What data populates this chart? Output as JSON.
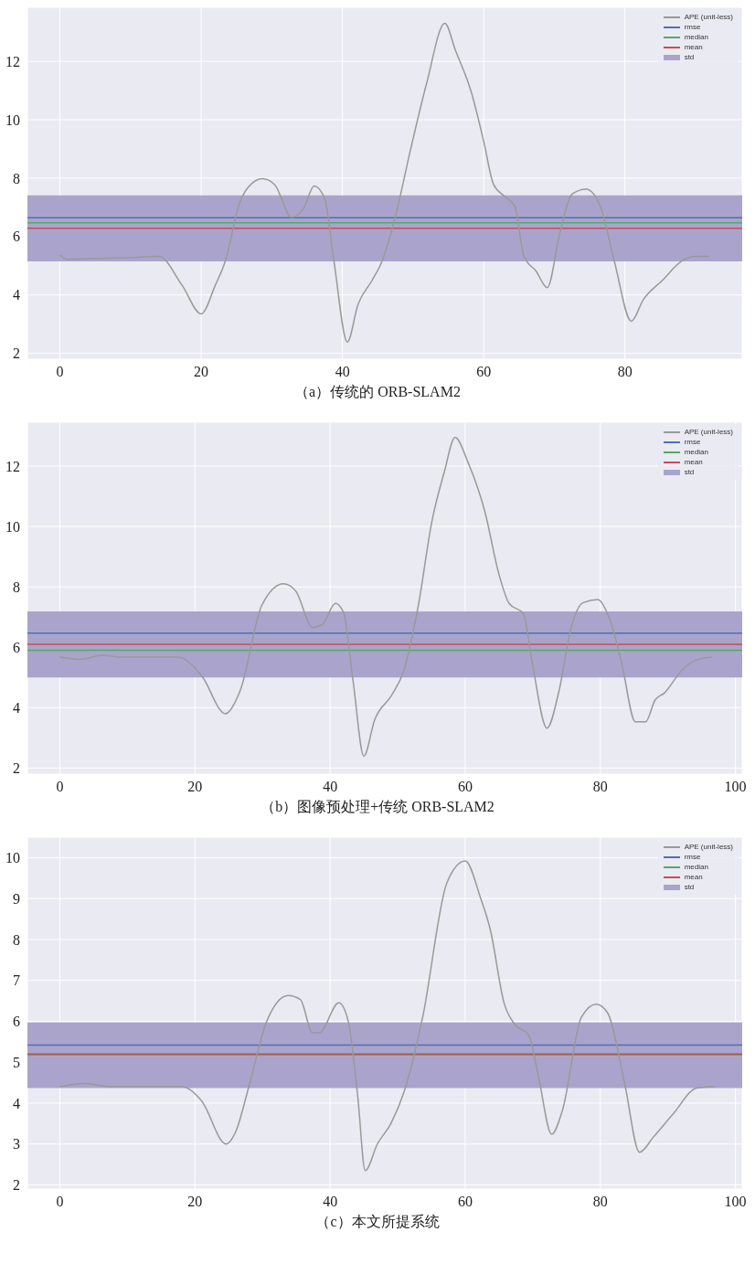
{
  "chart_data": [
    {
      "type": "line",
      "title": "（a）传统的 ORB-SLAM2",
      "x": [
        0,
        1,
        6,
        10,
        14,
        17.3,
        20,
        22,
        23.4,
        25.4,
        26.7,
        28.7,
        30.4,
        32.8,
        34.5,
        36,
        37.5,
        38.8,
        40.7,
        42.2,
        44.2,
        45.6,
        47.6,
        49.6,
        51.9,
        54.5,
        56,
        58.3,
        60,
        61.4,
        63,
        64.4,
        65.7,
        67.4,
        69,
        70.8,
        72.5,
        74.5,
        76.5,
        78.5,
        80.9,
        82.6,
        85.3,
        88,
        90,
        92
      ],
      "series": [
        {
          "name": "APE (unit-less)",
          "color": "#999999",
          "values": [
            5.37,
            5.22,
            5.25,
            5.28,
            5.32,
            4.33,
            3.35,
            4.33,
            5.15,
            7.12,
            7.7,
            7.98,
            7.78,
            6.66,
            6.96,
            7.73,
            7.29,
            5.15,
            2.39,
            3.67,
            4.5,
            5.15,
            6.79,
            8.93,
            11.23,
            13.3,
            12.38,
            10.9,
            9.26,
            7.78,
            7.37,
            7.04,
            5.32,
            4.82,
            4.25,
            6.14,
            7.45,
            7.62,
            7.04,
            5.15,
            3.1,
            3.84,
            4.5,
            5.15,
            5.32,
            5.32
          ]
        }
      ],
      "xlim": [
        -4.6,
        96.6
      ],
      "xticks": [
        0,
        20,
        40,
        60,
        80
      ],
      "ylim": [
        1.8,
        13.85
      ],
      "yticks": [
        2,
        4,
        6,
        8,
        10,
        12
      ],
      "grid": true,
      "legend": "top right",
      "ref_lines": [
        {
          "axis": "y",
          "value": 6.64,
          "label": "rmse",
          "color": "#4c72b0"
        },
        {
          "axis": "y",
          "value": 6.47,
          "label": "median",
          "color": "#55a868"
        },
        {
          "axis": "y",
          "value": 6.28,
          "label": "mean",
          "color": "#c44e52"
        }
      ],
      "bands": [
        {
          "axis": "y",
          "from": 5.15,
          "to": 7.41,
          "label": "std",
          "color": "#aaa4cc"
        }
      ]
    },
    {
      "type": "line",
      "title": "（b）图像预处理+传统 ORB-SLAM2",
      "x": [
        0,
        3,
        6.3,
        9,
        17.5,
        21,
        24.5,
        26.7,
        29.9,
        33.1,
        34.9,
        37.4,
        38.8,
        40.8,
        42,
        43.4,
        45,
        46.6,
        49.1,
        50.9,
        53,
        55.1,
        56.9,
        58.5,
        60.4,
        62.9,
        65,
        66.5,
        68.6,
        70,
        72.1,
        73.9,
        75.7,
        77.4,
        79.6,
        81.3,
        83.1,
        85.2,
        86.7,
        88.1,
        89.5,
        92,
        94.1,
        96.5
      ],
      "series": [
        {
          "name": "APE (unit-less)",
          "color": "#999999",
          "values": [
            5.67,
            5.6,
            5.73,
            5.67,
            5.67,
            5.05,
            3.8,
            4.57,
            7.39,
            8.1,
            7.87,
            6.66,
            6.74,
            7.45,
            7.14,
            4.89,
            2.4,
            3.6,
            4.41,
            5.22,
            7.31,
            10.2,
            11.8,
            12.95,
            12.13,
            10.5,
            8.41,
            7.45,
            7.11,
            5.38,
            3.32,
            4.57,
            6.66,
            7.47,
            7.58,
            6.98,
            5.54,
            3.53,
            3.53,
            4.25,
            4.49,
            5.22,
            5.57,
            5.67
          ]
        }
      ],
      "xlim": [
        -4.8,
        101
      ],
      "xticks": [
        0,
        20,
        40,
        60,
        80,
        100
      ],
      "ylim": [
        1.8,
        13.45
      ],
      "yticks": [
        2,
        4,
        6,
        8,
        10,
        12
      ],
      "grid": true,
      "legend": "top right",
      "ref_lines": [
        {
          "axis": "y",
          "value": 6.47,
          "label": "rmse",
          "color": "#4c72b0"
        },
        {
          "axis": "y",
          "value": 5.9,
          "label": "median",
          "color": "#55a868"
        },
        {
          "axis": "y",
          "value": 6.1,
          "label": "mean",
          "color": "#c44e52"
        }
      ],
      "bands": [
        {
          "axis": "y",
          "from": 5.0,
          "to": 7.19,
          "label": "std",
          "color": "#aaa4cc"
        }
      ]
    },
    {
      "type": "line",
      "title": "（c）本文所提系统",
      "x": [
        0,
        3.6,
        7.5,
        18.1,
        21,
        24.6,
        26,
        28.1,
        30.6,
        33.8,
        35.6,
        37.4,
        38.4,
        41.3,
        42.7,
        44.1,
        45.2,
        47,
        49,
        51,
        53.7,
        57.3,
        60,
        62.3,
        63.7,
        65.8,
        67.3,
        69.4,
        70.8,
        72.8,
        74.4,
        77.2,
        79.4,
        81.1,
        83.6,
        85.8,
        87.9,
        90.7,
        94.3,
        97
      ],
      "series": [
        {
          "name": "APE (unit-less)",
          "color": "#999999",
          "values": [
            4.4,
            4.48,
            4.4,
            4.4,
            4.05,
            3.0,
            3.29,
            4.48,
            5.99,
            6.63,
            6.53,
            5.72,
            5.72,
            6.45,
            5.99,
            4.15,
            2.35,
            3.0,
            3.5,
            4.3,
            6.1,
            9.39,
            9.92,
            9.0,
            8.25,
            6.42,
            5.93,
            5.66,
            4.69,
            3.24,
            3.83,
            6.1,
            6.42,
            6.2,
            4.48,
            2.8,
            3.18,
            3.72,
            4.37,
            4.4
          ]
        }
      ],
      "xlim": [
        -4.8,
        101
      ],
      "xticks": [
        0,
        20,
        40,
        60,
        80,
        100
      ],
      "ylim": [
        1.9,
        10.5
      ],
      "yticks": [
        2,
        3,
        4,
        5,
        6,
        7,
        8,
        9,
        10
      ],
      "grid": true,
      "legend": "top right",
      "ref_lines": [
        {
          "axis": "y",
          "value": 5.42,
          "label": "rmse",
          "color": "#4c72b0"
        },
        {
          "axis": "y",
          "value": 5.18,
          "label": "median",
          "color": "#55a868"
        },
        {
          "axis": "y",
          "value": 5.2,
          "label": "mean",
          "color": "#c44e52"
        }
      ],
      "bands": [
        {
          "axis": "y",
          "from": 4.37,
          "to": 5.97,
          "label": "std",
          "color": "#aaa4cc"
        }
      ]
    }
  ]
}
